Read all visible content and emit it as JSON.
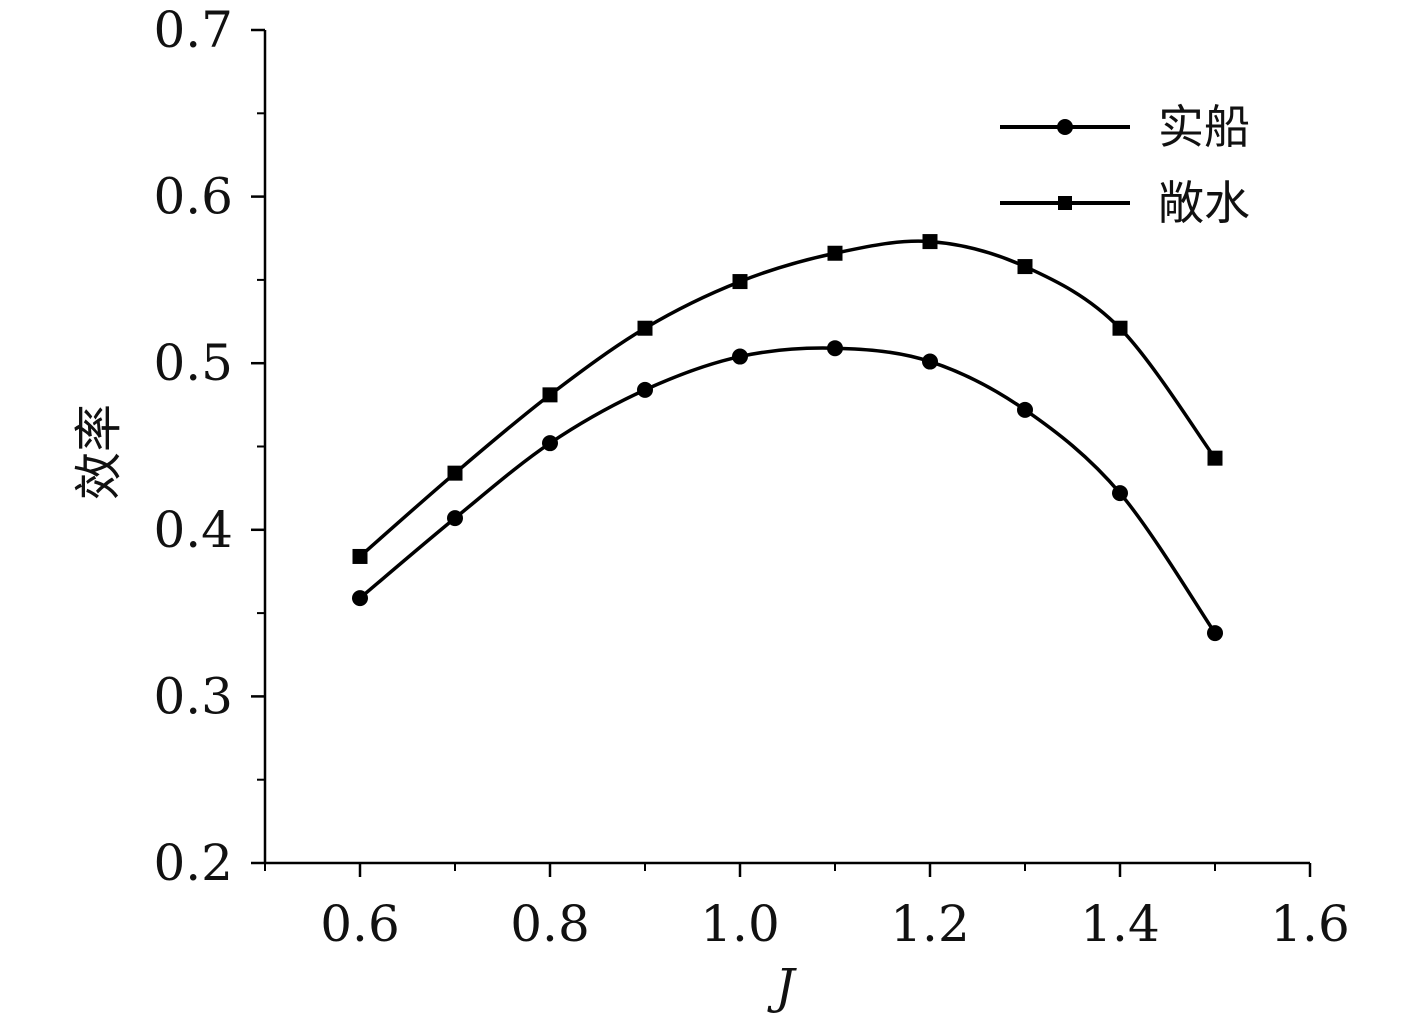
{
  "chart_data": {
    "type": "line",
    "xlabel": "J",
    "ylabel": "效率",
    "xlim": [
      0.5,
      1.6
    ],
    "ylim": [
      0.2,
      0.7
    ],
    "x_ticks": [
      "0.6",
      "0.8",
      "1.0",
      "1.2",
      "1.4",
      "1.6"
    ],
    "y_ticks": [
      "0.2",
      "0.3",
      "0.4",
      "0.5",
      "0.6",
      "0.7"
    ],
    "x": [
      0.6,
      0.7,
      0.8,
      0.9,
      1.0,
      1.1,
      1.2,
      1.3,
      1.4,
      1.5
    ],
    "series": [
      {
        "name": "实船",
        "marker": "circle",
        "values": [
          0.359,
          0.407,
          0.452,
          0.484,
          0.504,
          0.509,
          0.501,
          0.472,
          0.422,
          0.338
        ]
      },
      {
        "name": "敞水",
        "marker": "square",
        "values": [
          0.384,
          0.434,
          0.481,
          0.521,
          0.549,
          0.566,
          0.573,
          0.558,
          0.521,
          0.443
        ]
      }
    ],
    "grid": false,
    "legend_position": "top-right",
    "line_color": "#000000"
  }
}
